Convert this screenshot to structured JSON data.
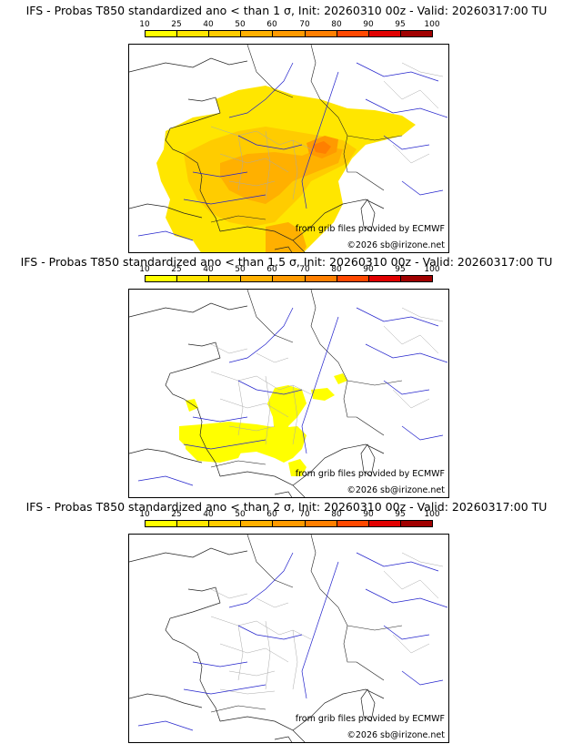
{
  "colors": {
    "scale": [
      "#ffff00",
      "#ffe600",
      "#ffcc00",
      "#ffb000",
      "#ff9a00",
      "#ff7f00",
      "#ff4800",
      "#e00000",
      "#a00000",
      "#600000"
    ],
    "border": "#222222",
    "river": "#2222cc",
    "admin": "#aaaaaa"
  },
  "scale_labels": [
    "10",
    "25",
    "40",
    "50",
    "60",
    "70",
    "80",
    "90",
    "95",
    "100"
  ],
  "panels": [
    {
      "title": "IFS - Probas T850  standardized ano < than 1 σ, Init: 20260310 00z - Valid: 20260317:00 TU",
      "credit_grib": "from grib files provided by ECMWF",
      "credit_copy": "©2026 sb@irizone.net"
    },
    {
      "title": "IFS - Probas T850  standardized ano < than 1.5 σ, Init: 20260310 00z - Valid: 20260317:00 TU",
      "credit_grib": "from grib files provided by ECMWF",
      "credit_copy": "©2026 sb@irizone.net"
    },
    {
      "title": "IFS - Probas T850  standardized ano < than 2 σ, Init: 20260310 00z - Valid: 20260317:00 TU",
      "credit_grib": "from grib files provided by ECMWF",
      "credit_copy": "©2026 sb@irizone.net"
    }
  ]
}
